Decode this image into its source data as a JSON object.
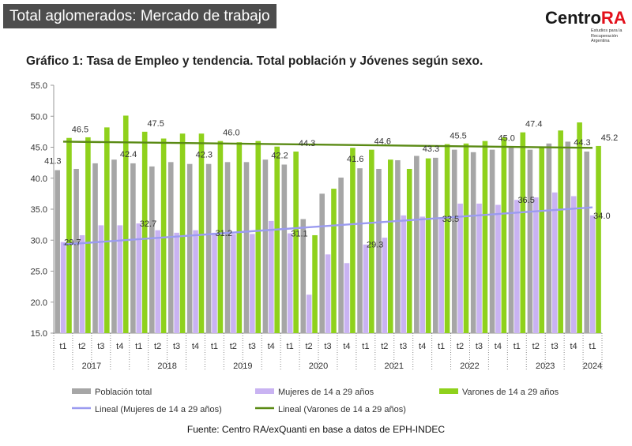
{
  "header": {
    "title": "Total aglomerados: Mercado de trabajo"
  },
  "logo": {
    "brand": "Centro",
    "brand_accent": "RA",
    "tagline_1": "Estudios para la",
    "tagline_2": "Recuperación Argentina"
  },
  "source": "Fuente: Centro RA/exQuanti en base a datos de EPH-INDEC",
  "colors": {
    "total": "#a6a6a6",
    "mujeres": "#c9b3f2",
    "varones": "#8fd11c",
    "trend_mujeres": "#9b9bf0",
    "trend_varones": "#5a8a14"
  },
  "chart_data": {
    "type": "bar",
    "title": "Gráfico 1: Tasa de Empleo y tendencia. Total población y Jóvenes según sexo.",
    "ylim": [
      15,
      55
    ],
    "yticks": [
      "15.0",
      "20.0",
      "25.0",
      "30.0",
      "35.0",
      "40.0",
      "45.0",
      "50.0",
      "55.0"
    ],
    "quarters": [
      "t1",
      "t2",
      "t3",
      "t4",
      "t1",
      "t2",
      "t3",
      "t4",
      "t1",
      "t2",
      "t3",
      "t4",
      "t1",
      "t2",
      "t3",
      "t4",
      "t1",
      "t2",
      "t3",
      "t4",
      "t1",
      "t2",
      "t3",
      "t4",
      "t1",
      "t2",
      "t3",
      "t4",
      "t1"
    ],
    "years": [
      {
        "label": "2017",
        "quarters": 4
      },
      {
        "label": "2018",
        "quarters": 4
      },
      {
        "label": "2019",
        "quarters": 4
      },
      {
        "label": "2020",
        "quarters": 4
      },
      {
        "label": "2021",
        "quarters": 4
      },
      {
        "label": "2022",
        "quarters": 4
      },
      {
        "label": "2023",
        "quarters": 4
      },
      {
        "label": "2024",
        "quarters": 1
      }
    ],
    "series": [
      {
        "name": "Población total",
        "key": "total",
        "values": [
          41.3,
          41.5,
          42.4,
          43.0,
          42.4,
          41.9,
          42.6,
          42.3,
          42.3,
          42.6,
          42.6,
          43.0,
          42.2,
          33.4,
          37.5,
          40.1,
          41.6,
          41.5,
          42.9,
          43.6,
          43.3,
          44.6,
          44.2,
          44.6,
          45.0,
          44.6,
          45.6,
          45.9,
          44.3
        ],
        "labels": [
          {
            "i": 0,
            "text": "41.3"
          },
          {
            "i": 4,
            "text": "42.4"
          },
          {
            "i": 8,
            "text": "42.3"
          },
          {
            "i": 12,
            "text": "42.2"
          },
          {
            "i": 16,
            "text": "41.6"
          },
          {
            "i": 20,
            "text": "43.3"
          },
          {
            "i": 24,
            "text": "45.0"
          },
          {
            "i": 28,
            "text": "44.3"
          }
        ]
      },
      {
        "name": "Mujeres de 14 a 29 años",
        "key": "mujeres",
        "values": [
          29.7,
          30.8,
          32.4,
          32.4,
          32.7,
          31.6,
          31.2,
          31.6,
          31.2,
          31.0,
          31.0,
          33.1,
          31.1,
          21.2,
          27.7,
          26.3,
          29.3,
          30.4,
          34.0,
          33.8,
          33.5,
          35.9,
          35.9,
          35.7,
          36.5,
          36.9,
          37.7,
          37.1,
          34.0
        ],
        "labels": [
          {
            "i": 0,
            "text": "29.7"
          },
          {
            "i": 4,
            "text": "32.7"
          },
          {
            "i": 8,
            "text": "31.2"
          },
          {
            "i": 12,
            "text": "31.1"
          },
          {
            "i": 16,
            "text": "29.3"
          },
          {
            "i": 20,
            "text": "33.5"
          },
          {
            "i": 24,
            "text": "36.5"
          },
          {
            "i": 28,
            "text": "34.0"
          }
        ]
      },
      {
        "name": "Varones de 14 a 29 años",
        "key": "varones",
        "values": [
          46.5,
          46.6,
          48.2,
          50.1,
          47.5,
          46.4,
          47.2,
          47.2,
          46.0,
          45.8,
          46.0,
          45.1,
          44.3,
          30.8,
          38.3,
          44.9,
          44.6,
          43.0,
          41.5,
          43.2,
          45.5,
          45.6,
          46.0,
          46.6,
          47.4,
          45.1,
          47.7,
          49.0,
          45.2
        ],
        "labels": [
          {
            "i": 0,
            "text": "46.5"
          },
          {
            "i": 4,
            "text": "47.5"
          },
          {
            "i": 8,
            "text": "46.0"
          },
          {
            "i": 12,
            "text": "44.3"
          },
          {
            "i": 16,
            "text": "44.6"
          },
          {
            "i": 20,
            "text": "45.5"
          },
          {
            "i": 24,
            "text": "47.4"
          },
          {
            "i": 28,
            "text": "45.2"
          }
        ]
      }
    ],
    "trendlines": [
      {
        "name": "Lineal (Mujeres de 14 a 29 años)",
        "key": "trend_mujeres",
        "start": 29.3,
        "end": 35.3
      },
      {
        "name": "Lineal (Varones de 14 a 29 años)",
        "key": "trend_varones",
        "start": 45.9,
        "end": 44.9
      }
    ],
    "legend_position": "bottom",
    "grid": false
  }
}
